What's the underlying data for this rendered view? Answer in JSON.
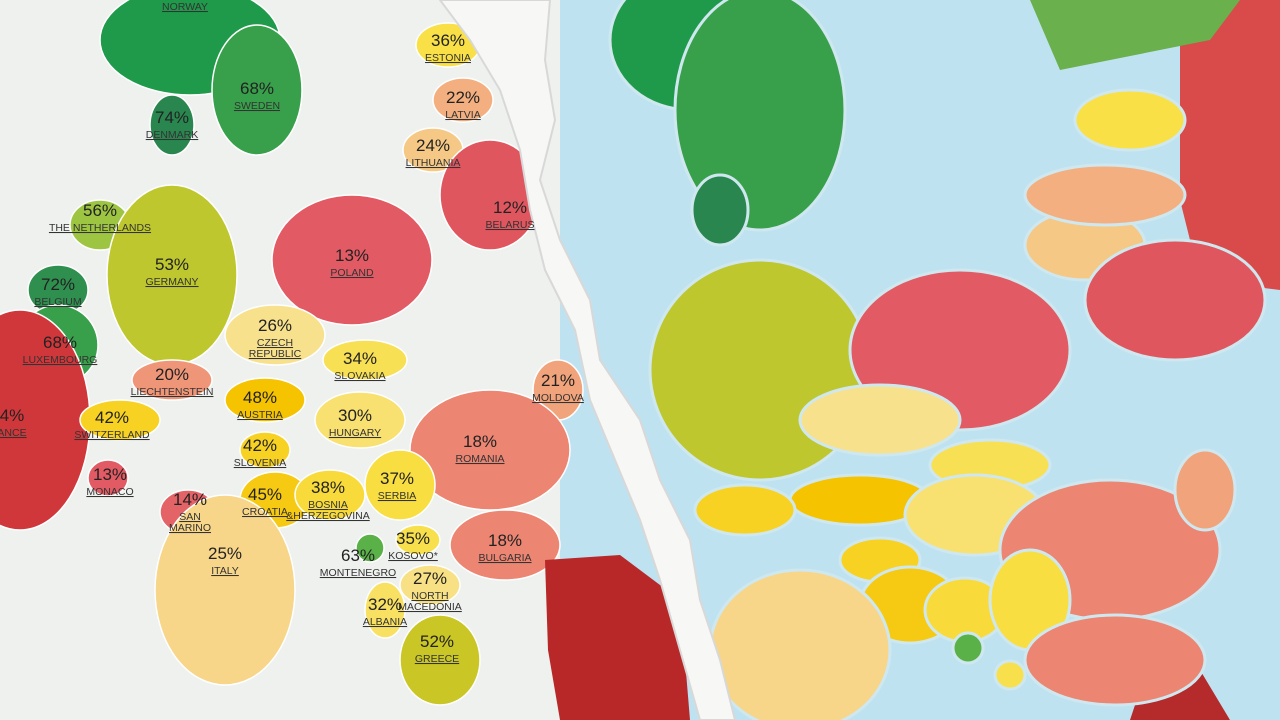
{
  "countries": [
    {
      "name": [
        "NORWAY"
      ]
    },
    {
      "name": [
        "ESTONIA"
      ],
      "value": 36,
      "label": "36%"
    },
    {
      "name": [
        "LATVIA"
      ],
      "value": 22,
      "label": "22%"
    },
    {
      "name": [
        "SWEDEN"
      ],
      "value": 68,
      "label": "68%"
    },
    {
      "name": [
        "DENMARK"
      ],
      "value": 74,
      "label": "74%"
    },
    {
      "name": [
        "LITHUANIA"
      ],
      "value": 24,
      "label": "24%"
    },
    {
      "name": [
        "THE NETHERLANDS"
      ],
      "value": 56,
      "label": "56%"
    },
    {
      "name": [
        "BELARUS"
      ],
      "value": 12,
      "label": "12%"
    },
    {
      "name": [
        "GERMANY"
      ],
      "value": 53,
      "label": "53%"
    },
    {
      "name": [
        "POLAND"
      ],
      "value": 13,
      "label": "13%"
    },
    {
      "name": [
        "BELGIUM"
      ],
      "value": 72,
      "label": "72%"
    },
    {
      "name": [
        "LUXEMBOURG"
      ],
      "value": 68,
      "label": "68%"
    },
    {
      "name": [
        "CZECH",
        "REPUBLIC"
      ],
      "value": 26,
      "label": "26%"
    },
    {
      "name": [
        "SLOVAKIA"
      ],
      "value": 34,
      "label": "34%"
    },
    {
      "name": [
        "LIECHTENSTEIN"
      ],
      "value": 20,
      "label": "20%"
    },
    {
      "name": [
        "MOLDOVA"
      ],
      "value": 21,
      "label": "21%"
    },
    {
      "name": [
        "ANCE"
      ],
      "value": 4,
      "label": "4%"
    },
    {
      "name": [
        "AUSTRIA"
      ],
      "value": 48,
      "label": "48%"
    },
    {
      "name": [
        "SWITZERLAND"
      ],
      "value": 42,
      "label": "42%"
    },
    {
      "name": [
        "HUNGARY"
      ],
      "value": 30,
      "label": "30%"
    },
    {
      "name": [
        "ROMANIA"
      ],
      "value": 18,
      "label": "18%"
    },
    {
      "name": [
        "SLOVENIA"
      ],
      "value": 42,
      "label": "42%"
    },
    {
      "name": [
        "SERBIA"
      ],
      "value": 37,
      "label": "37%"
    },
    {
      "name": [
        "MONACO"
      ],
      "value": 13,
      "label": "13%"
    },
    {
      "name": [
        "SAN",
        "MARINO"
      ],
      "value": 14,
      "label": "14%"
    },
    {
      "name": [
        "CROATIA"
      ],
      "value": 45,
      "label": "45%"
    },
    {
      "name": [
        "BOSNIA",
        "&HERZEGOVINA"
      ],
      "value": 38,
      "label": "38%"
    },
    {
      "name": [
        "KOSOVO*"
      ],
      "value": 35,
      "label": "35%"
    },
    {
      "name": [
        "BULGARIA"
      ],
      "value": 18,
      "label": "18%"
    },
    {
      "name": [
        "MONTENEGRO"
      ],
      "value": 63,
      "label": "63%"
    },
    {
      "name": [
        "ITALY"
      ],
      "value": 25,
      "label": "25%"
    },
    {
      "name": [
        "NORTH",
        "MACEDONIA"
      ],
      "value": 27,
      "label": "27%"
    },
    {
      "name": [
        "ALBANIA"
      ],
      "value": 32,
      "label": "32%"
    },
    {
      "name": [
        "GREECE"
      ],
      "value": 52,
      "label": "52%"
    }
  ]
}
